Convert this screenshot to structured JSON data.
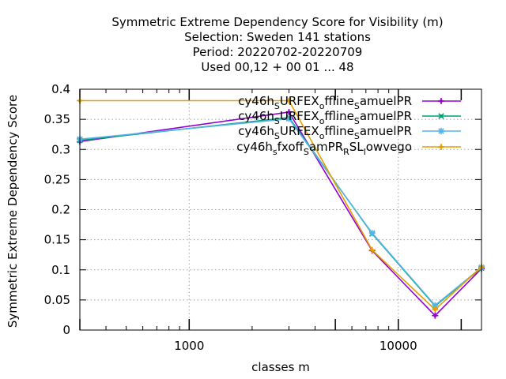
{
  "chart_data": {
    "type": "line",
    "title_lines": [
      "Symmetric Extreme Dependency Score  for Visibility (m)",
      "Selection: Sweden    141 stations",
      "Period: 20220702-20220709",
      "Used  00,12  + 00 01 ... 48"
    ],
    "xlabel": "classes m",
    "ylabel": "Symmetric Extreme Dependency Score",
    "x_scale": "log",
    "xlim": [
      300,
      25000
    ],
    "ylim": [
      0,
      0.4
    ],
    "x_ticks": [
      1000,
      10000
    ],
    "x_tick_labels": [
      "1000",
      "10000"
    ],
    "y_ticks": [
      0,
      0.05,
      0.1,
      0.15,
      0.2,
      0.25,
      0.3,
      0.35,
      0.4
    ],
    "y_tick_labels": [
      "0",
      "0.05",
      "0.1",
      "0.15",
      "0.2",
      "0.25",
      "0.3",
      "0.35",
      "0.4"
    ],
    "extra_major_ticks": [
      300,
      5000,
      20000
    ],
    "grid": true,
    "legend_position": "top-right",
    "series": [
      {
        "name": "cy46h_SURFEX_offline_samuelPR",
        "legend": {
          "base1": "cy46h",
          "sub1": "S",
          "mid1": "URFEX",
          "sub2": "o",
          "mid2": "ffline",
          "sub3": "S",
          "end": "amuelPR"
        },
        "color": "#9400d3",
        "marker": "plus",
        "x": [
          300,
          3000,
          7500,
          15000,
          25000
        ],
        "y": [
          0.313,
          0.362,
          0.132,
          0.024,
          0.102
        ]
      },
      {
        "name": "cy46h_SURFEX_offline_samuelPR",
        "legend": {
          "base1": "cy46h",
          "sub1": "S",
          "mid1": "URFEX",
          "sub2": "o",
          "mid2": "ffline",
          "sub3": "S",
          "end": "amuelPR"
        },
        "color": "#009e73",
        "marker": "cross",
        "x": [
          300,
          3000,
          7500,
          15000,
          25000
        ],
        "y": [
          0.315,
          0.353,
          0.16,
          0.04,
          0.103
        ]
      },
      {
        "name": "cy46h_SURFEX_offline_samuelPR",
        "legend": {
          "base1": "cy46h",
          "sub1": "S",
          "mid1": "URFEX",
          "sub2": "o",
          "mid2": "ffline",
          "sub3": "S",
          "end": "amuelPR"
        },
        "color": "#56b4e9",
        "marker": "star",
        "x": [
          300,
          3000,
          7500,
          15000,
          25000
        ],
        "y": [
          0.317,
          0.351,
          0.161,
          0.041,
          0.104
        ]
      },
      {
        "name": "cy46h_sfxoff_samPR_RSL_lowvego",
        "legend": {
          "base1": "cy46h",
          "sub1": "s",
          "mid1": "fxoff",
          "sub2": "S",
          "mid2": "amPR",
          "sub3": "R",
          "mid3": "SL",
          "sub4": "l",
          "end": "owvego"
        },
        "color": "#e69f00",
        "marker": "plus",
        "x": [
          300,
          3000,
          7500,
          15000,
          25000
        ],
        "y": [
          0.381,
          0.381,
          0.133,
          0.034,
          0.105
        ]
      }
    ]
  }
}
